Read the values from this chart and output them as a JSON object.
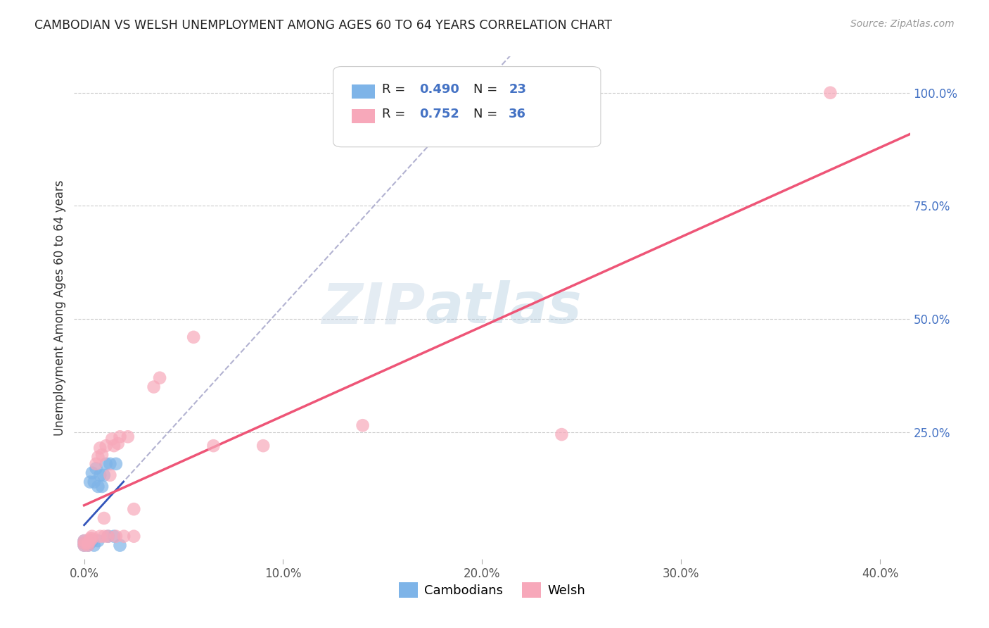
{
  "title": "CAMBODIAN VS WELSH UNEMPLOYMENT AMONG AGES 60 TO 64 YEARS CORRELATION CHART",
  "source": "Source: ZipAtlas.com",
  "xlabel_ticks": [
    "0.0%",
    "10.0%",
    "20.0%",
    "30.0%",
    "40.0%"
  ],
  "xlabel_tick_vals": [
    0.0,
    0.1,
    0.2,
    0.3,
    0.4
  ],
  "ylabel_label": "Unemployment Among Ages 60 to 64 years",
  "ylabel_ticks": [
    "100.0%",
    "75.0%",
    "50.0%",
    "25.0%"
  ],
  "ylabel_tick_vals": [
    1.0,
    0.75,
    0.5,
    0.25
  ],
  "xlim": [
    -0.005,
    0.415
  ],
  "ylim": [
    -0.03,
    1.08
  ],
  "cambodian_color": "#7EB4E8",
  "welsh_color": "#F7A8BA",
  "cambodian_line_color": "#3355BB",
  "welsh_line_color": "#EE5577",
  "cambodian_R": 0.49,
  "cambodian_N": 23,
  "welsh_R": 0.752,
  "welsh_N": 36,
  "watermark_zip": "ZIP",
  "watermark_atlas": "atlas",
  "background_color": "#FFFFFF",
  "grid_color": "#CCCCCC",
  "cambodian_x": [
    0.0,
    0.0,
    0.0,
    0.002,
    0.002,
    0.003,
    0.003,
    0.004,
    0.004,
    0.005,
    0.005,
    0.006,
    0.007,
    0.007,
    0.008,
    0.009,
    0.01,
    0.011,
    0.012,
    0.013,
    0.015,
    0.016,
    0.018
  ],
  "cambodian_y": [
    0.0,
    0.005,
    0.01,
    0.0,
    0.005,
    0.005,
    0.14,
    0.01,
    0.16,
    0.0,
    0.14,
    0.17,
    0.01,
    0.13,
    0.155,
    0.13,
    0.155,
    0.18,
    0.02,
    0.18,
    0.02,
    0.18,
    0.0
  ],
  "welsh_x": [
    0.0,
    0.0,
    0.0,
    0.002,
    0.002,
    0.003,
    0.003,
    0.004,
    0.004,
    0.006,
    0.007,
    0.008,
    0.008,
    0.009,
    0.01,
    0.01,
    0.011,
    0.012,
    0.013,
    0.014,
    0.015,
    0.016,
    0.017,
    0.018,
    0.02,
    0.022,
    0.025,
    0.025,
    0.035,
    0.038,
    0.055,
    0.065,
    0.09,
    0.14,
    0.24,
    0.375
  ],
  "welsh_y": [
    0.0,
    0.005,
    0.01,
    0.0,
    0.005,
    0.01,
    0.015,
    0.015,
    0.02,
    0.18,
    0.195,
    0.215,
    0.02,
    0.2,
    0.02,
    0.06,
    0.22,
    0.02,
    0.155,
    0.235,
    0.22,
    0.02,
    0.225,
    0.24,
    0.02,
    0.24,
    0.02,
    0.08,
    0.35,
    0.37,
    0.46,
    0.22,
    0.22,
    0.265,
    0.245,
    1.0
  ]
}
